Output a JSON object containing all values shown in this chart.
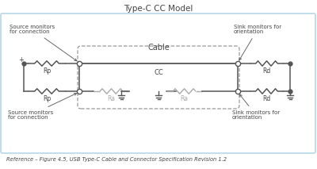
{
  "title": "Type-C CC Model",
  "reference": "Reference – Figure 4.5, USB Type-C Cable and Connector Specification Revision 1.2",
  "bg_color": "#ffffff",
  "outer_border_color": "#b8d8e8",
  "wire_color": "#555555",
  "resistor_color": "#555555",
  "ra_color": "#aaaaaa",
  "label_color": "#444444",
  "source_top_label": "Source monitors\nfor connection",
  "source_bot_label": "Source monitors\nfor connection",
  "sink_top_label": "Sink monitors for\norientation",
  "sink_bot_label": "Sink monitors for\norientation",
  "cable_label": "Cable",
  "cc_label": "CC",
  "rp_top": "Rp",
  "rp_bot": "Rp",
  "rd_top": "Rd",
  "rd_bot": "Rd",
  "ra_left": "Ra",
  "ra_right": "Ra",
  "plus_label": "+"
}
